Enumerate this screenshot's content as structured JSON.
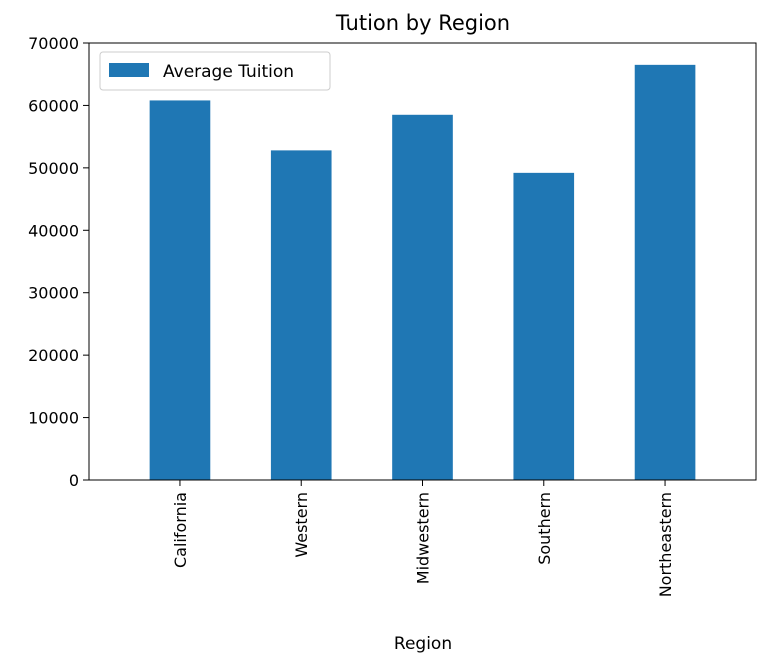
{
  "chart_data": {
    "type": "bar",
    "title": "Tution by Region",
    "xlabel": "Region",
    "ylabel": "",
    "categories": [
      "California",
      "Western",
      "Midwestern",
      "Southern",
      "Northeastern"
    ],
    "series": [
      {
        "name": "Average Tuition",
        "values": [
          60800,
          52800,
          58500,
          49200,
          66500
        ],
        "color": "#1f77b4"
      }
    ],
    "ylim": [
      0,
      70000
    ],
    "yticks": [
      0,
      10000,
      20000,
      30000,
      40000,
      50000,
      60000,
      70000
    ],
    "ytick_labels": [
      "0",
      "10000",
      "20000",
      "30000",
      "40000",
      "50000",
      "60000",
      "70000"
    ],
    "grid": false,
    "legend_position": "upper left"
  }
}
